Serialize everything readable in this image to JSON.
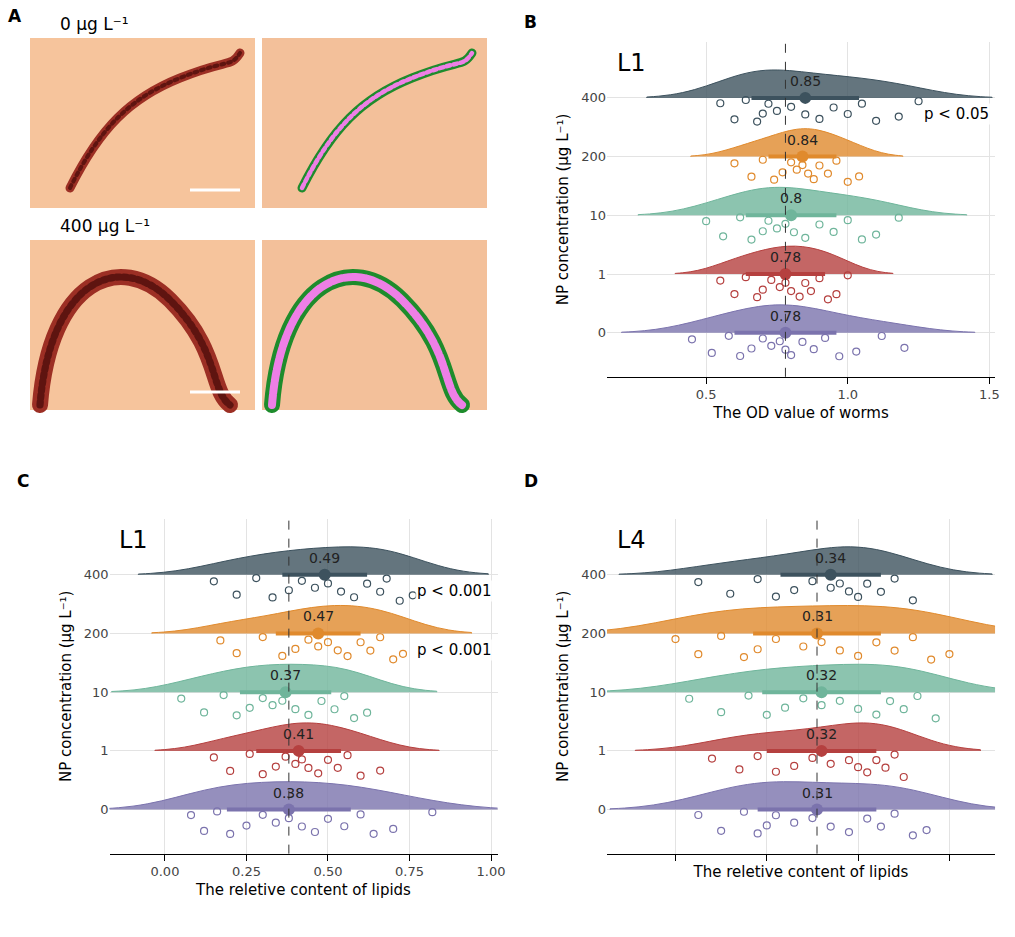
{
  "panel_a": {
    "letter": "A",
    "images": [
      {
        "label": "0 μg L⁻¹"
      },
      {
        "label": "400 μg L⁻¹"
      }
    ]
  },
  "chart_data": [
    {
      "type": "raincloud",
      "panel": "B",
      "title": "L1",
      "xlabel": "The OD value of worms",
      "ylabel": "NP concentration (μg L⁻¹)",
      "categories": [
        "0",
        "1",
        "10",
        "200",
        "400"
      ],
      "xlim": [
        0.15,
        1.52
      ],
      "xticks": [
        {
          "value": 0.5,
          "label": "0.5"
        },
        {
          "value": 1,
          "label": "1.0"
        },
        {
          "value": 1.5,
          "label": "1.5"
        }
      ],
      "grid": true,
      "data_labels": true,
      "ref_line": 0.78,
      "groups": [
        {
          "category": "0",
          "color": "#7b73ad",
          "mean": 0.78,
          "sd": 0.18,
          "values": [
            0.45,
            0.52,
            0.58,
            0.62,
            0.66,
            0.7,
            0.73,
            0.76,
            0.78,
            0.8,
            0.84,
            0.88,
            0.92,
            0.97,
            1.03,
            1.12,
            1.2
          ]
        },
        {
          "category": "1",
          "color": "#b5403f",
          "mean": 0.78,
          "sd": 0.14,
          "values": [
            0.55,
            0.6,
            0.64,
            0.68,
            0.7,
            0.73,
            0.76,
            0.78,
            0.8,
            0.83,
            0.85,
            0.87,
            0.9,
            0.93,
            0.96,
            1.0
          ]
        },
        {
          "category": "10",
          "color": "#6fb59b",
          "mean": 0.8,
          "sd": 0.16,
          "values": [
            0.5,
            0.56,
            0.62,
            0.66,
            0.7,
            0.72,
            0.75,
            0.78,
            0.81,
            0.85,
            0.9,
            0.95,
            1.0,
            1.05,
            1.1,
            1.18
          ]
        },
        {
          "category": "200",
          "color": "#e08a2d",
          "mean": 0.84,
          "sd": 0.12,
          "values": [
            0.6,
            0.66,
            0.7,
            0.74,
            0.77,
            0.8,
            0.82,
            0.84,
            0.86,
            0.88,
            0.9,
            0.93,
            0.96,
            1.0,
            1.04
          ]
        },
        {
          "category": "400",
          "color": "#3d525e",
          "mean": 0.85,
          "sd": 0.19,
          "values": [
            0.55,
            0.6,
            0.64,
            0.68,
            0.7,
            0.72,
            0.75,
            0.8,
            0.85,
            0.9,
            0.95,
            1.0,
            1.05,
            1.1,
            1.18,
            1.25
          ]
        }
      ],
      "annotations": [
        {
          "text": "p < 0.05",
          "category": "400"
        }
      ]
    },
    {
      "type": "raincloud",
      "panel": "C",
      "title": "L1",
      "xlabel": "The reletive content of lipids",
      "ylabel": "NP concentration (μg L⁻¹)",
      "categories": [
        "0",
        "1",
        "10",
        "200",
        "400"
      ],
      "xlim": [
        -0.17,
        1.02
      ],
      "xticks": [
        {
          "value": 0,
          "label": "0.00"
        },
        {
          "value": 0.25,
          "label": "0.25"
        },
        {
          "value": 0.5,
          "label": "0.50"
        },
        {
          "value": 0.75,
          "label": "0.75"
        },
        {
          "value": 1,
          "label": "1.00"
        }
      ],
      "grid": true,
      "data_labels": true,
      "ref_line": 0.38,
      "groups": [
        {
          "category": "0",
          "color": "#7b73ad",
          "mean": 0.38,
          "sd": 0.19,
          "values": [
            0.08,
            0.12,
            0.16,
            0.2,
            0.25,
            0.3,
            0.34,
            0.38,
            0.42,
            0.46,
            0.5,
            0.55,
            0.6,
            0.64,
            0.7,
            0.82
          ]
        },
        {
          "category": "1",
          "color": "#b5403f",
          "mean": 0.41,
          "sd": 0.13,
          "values": [
            0.15,
            0.2,
            0.26,
            0.3,
            0.34,
            0.37,
            0.4,
            0.42,
            0.44,
            0.47,
            0.5,
            0.53,
            0.56,
            0.6,
            0.66
          ]
        },
        {
          "category": "10",
          "color": "#6fb59b",
          "mean": 0.37,
          "sd": 0.14,
          "values": [
            0.05,
            0.12,
            0.18,
            0.22,
            0.26,
            0.3,
            0.33,
            0.36,
            0.4,
            0.44,
            0.48,
            0.52,
            0.55,
            0.58,
            0.62
          ]
        },
        {
          "category": "200",
          "color": "#e08a2d",
          "mean": 0.47,
          "sd": 0.13,
          "values": [
            0.17,
            0.22,
            0.3,
            0.36,
            0.4,
            0.44,
            0.47,
            0.5,
            0.53,
            0.56,
            0.6,
            0.63,
            0.66,
            0.7,
            0.73
          ]
        },
        {
          "category": "400",
          "color": "#3d525e",
          "mean": 0.49,
          "sd": 0.13,
          "values": [
            0.15,
            0.22,
            0.28,
            0.33,
            0.38,
            0.42,
            0.46,
            0.5,
            0.54,
            0.58,
            0.62,
            0.66,
            0.68,
            0.72,
            0.76
          ]
        }
      ],
      "annotations": [
        {
          "text": "p < 0.001",
          "category": "400"
        },
        {
          "text": "p < 0.001",
          "category": "200"
        }
      ]
    },
    {
      "type": "raincloud",
      "panel": "D",
      "title": "L4",
      "xlabel": "The reletive content of lipids",
      "ylabel": "NP concentration (μg L⁻¹)",
      "categories": [
        "0",
        "1",
        "10",
        "200",
        "400"
      ],
      "xlim": [
        -0.15,
        0.7
      ],
      "xticks": [
        0,
        0.2,
        0.4,
        0.6
      ],
      "tick_labels": "y",
      "grid": true,
      "data_labels": true,
      "ref_line": 0.31,
      "groups": [
        {
          "category": "0",
          "color": "#7b73ad",
          "mean": 0.31,
          "sd": 0.13,
          "values": [
            0.05,
            0.1,
            0.15,
            0.18,
            0.2,
            0.22,
            0.26,
            0.3,
            0.34,
            0.38,
            0.42,
            0.45,
            0.48,
            0.52,
            0.55
          ]
        },
        {
          "category": "1",
          "color": "#b5403f",
          "mean": 0.32,
          "sd": 0.12,
          "values": [
            0.08,
            0.14,
            0.18,
            0.22,
            0.26,
            0.3,
            0.34,
            0.38,
            0.4,
            0.42,
            0.44,
            0.46,
            0.48,
            0.5
          ]
        },
        {
          "category": "10",
          "color": "#6fb59b",
          "mean": 0.32,
          "sd": 0.13,
          "values": [
            0.03,
            0.1,
            0.16,
            0.2,
            0.24,
            0.28,
            0.32,
            0.36,
            0.4,
            0.44,
            0.47,
            0.5,
            0.53,
            0.57
          ]
        },
        {
          "category": "200",
          "color": "#e08a2d",
          "mean": 0.31,
          "sd": 0.14,
          "values": [
            0.0,
            0.05,
            0.1,
            0.15,
            0.18,
            0.22,
            0.28,
            0.32,
            0.36,
            0.4,
            0.44,
            0.48,
            0.52,
            0.56,
            0.6
          ]
        },
        {
          "category": "400",
          "color": "#3d525e",
          "mean": 0.34,
          "sd": 0.11,
          "values": [
            0.05,
            0.12,
            0.18,
            0.22,
            0.26,
            0.3,
            0.34,
            0.36,
            0.38,
            0.4,
            0.42,
            0.45,
            0.48,
            0.52
          ]
        }
      ],
      "annotations": []
    }
  ]
}
